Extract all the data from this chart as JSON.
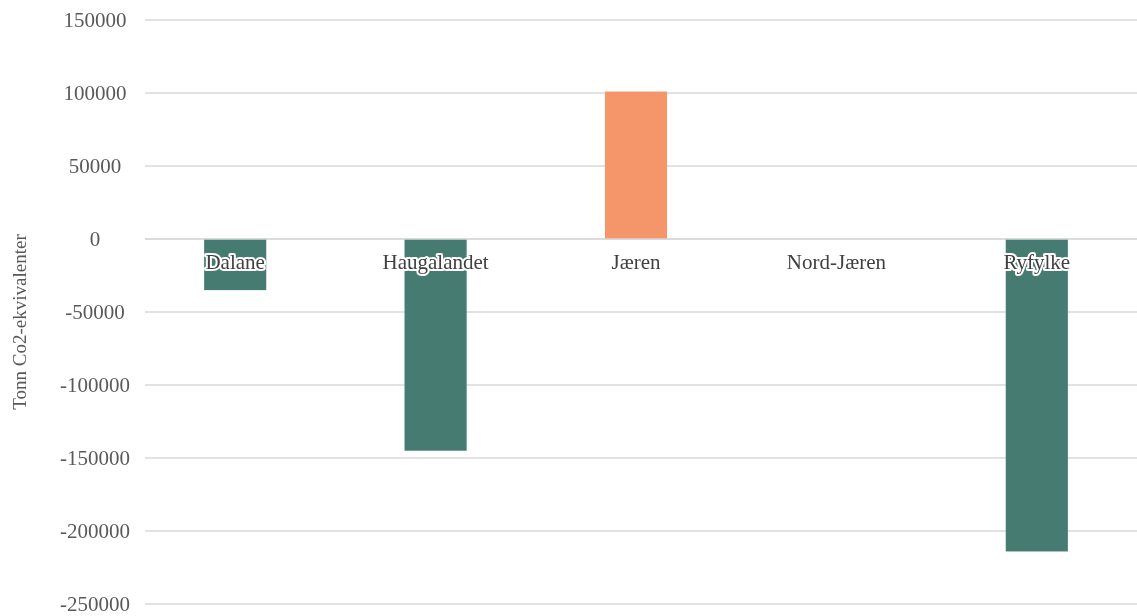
{
  "chart_data": {
    "type": "bar",
    "ylabel": "Tonn Co2-ekvivalenter",
    "categories": [
      "Dalane",
      "Haugalandet",
      "Jæren",
      "Nord-Jæren",
      "Ryfylke"
    ],
    "values": [
      -35000,
      -145000,
      101000,
      0,
      -214000
    ],
    "colors": [
      "#457b71",
      "#457b71",
      "#f4956a",
      "#457b71",
      "#457b71"
    ],
    "ylim": [
      -250000,
      150000
    ],
    "yticks": [
      -250000,
      -200000,
      -150000,
      -100000,
      -50000,
      0,
      50000,
      100000,
      150000
    ],
    "grid": "y"
  }
}
